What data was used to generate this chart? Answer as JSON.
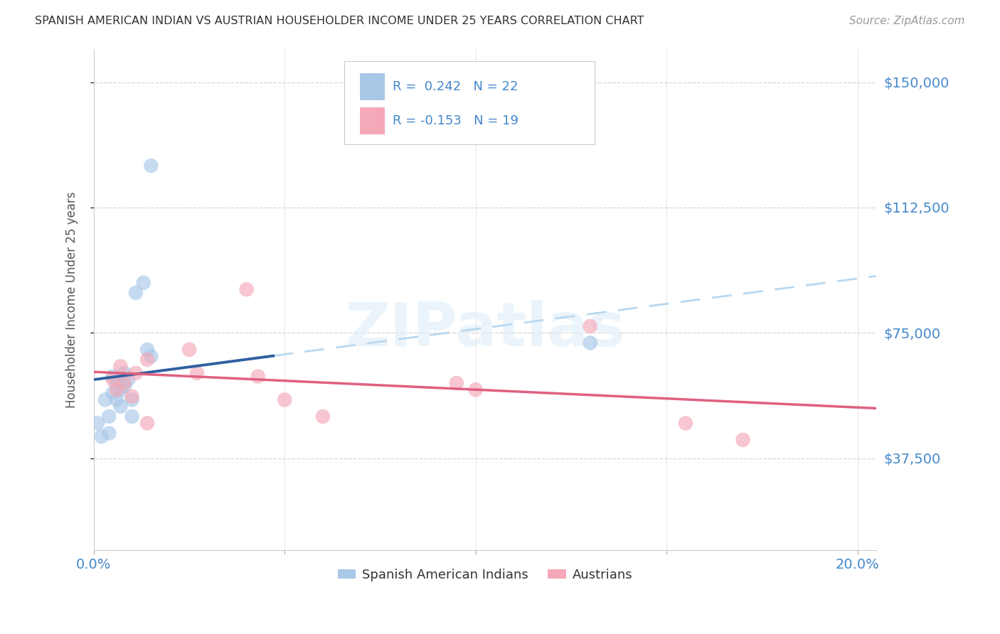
{
  "title": "SPANISH AMERICAN INDIAN VS AUSTRIAN HOUSEHOLDER INCOME UNDER 25 YEARS CORRELATION CHART",
  "source": "Source: ZipAtlas.com",
  "ylabel_label": "Householder Income Under 25 years",
  "blue_label": "Spanish American Indians",
  "pink_label": "Austrians",
  "legend_R_blue": "R =  0.242   N = 22",
  "legend_R_pink": "R = -0.153   N = 19",
  "blue_color": "#a8c8e8",
  "pink_color": "#f4a8b8",
  "blue_line_color": "#3060a0",
  "pink_line_color": "#e06080",
  "dashed_line_color": "#b8d8f0",
  "blue_scatter_x": [
    0.001,
    0.002,
    0.003,
    0.004,
    0.004,
    0.005,
    0.005,
    0.006,
    0.006,
    0.007,
    0.007,
    0.008,
    0.008,
    0.009,
    0.01,
    0.01,
    0.011,
    0.013,
    0.014,
    0.015,
    0.015,
    0.13
  ],
  "blue_scatter_y": [
    48000,
    44000,
    55000,
    50000,
    45000,
    62000,
    57000,
    60000,
    55000,
    58000,
    53000,
    59000,
    63000,
    61000,
    55000,
    50000,
    87000,
    90000,
    70000,
    68000,
    125000,
    72000
  ],
  "pink_scatter_x": [
    0.005,
    0.006,
    0.007,
    0.008,
    0.01,
    0.011,
    0.014,
    0.014,
    0.025,
    0.027,
    0.04,
    0.043,
    0.05,
    0.06,
    0.095,
    0.1,
    0.13,
    0.155,
    0.17
  ],
  "pink_scatter_y": [
    61000,
    58000,
    65000,
    60000,
    56000,
    63000,
    67000,
    48000,
    70000,
    63000,
    88000,
    62000,
    55000,
    50000,
    60000,
    58000,
    77000,
    48000,
    43000
  ],
  "xlim": [
    0.0,
    0.205
  ],
  "ylim": [
    10000,
    160000
  ],
  "yticks": [
    37500,
    75000,
    112500,
    150000
  ],
  "ylabel_labels": [
    "$37,500",
    "$75,000",
    "$112,500",
    "$150,000"
  ],
  "xticks": [
    0.0,
    0.05,
    0.1,
    0.15,
    0.2
  ],
  "xlabel_labels": [
    "0.0%",
    "",
    "",
    "",
    "20.0%"
  ],
  "background_color": "#ffffff",
  "grid_color": "#cccccc",
  "watermark_text": "ZIPatlas"
}
